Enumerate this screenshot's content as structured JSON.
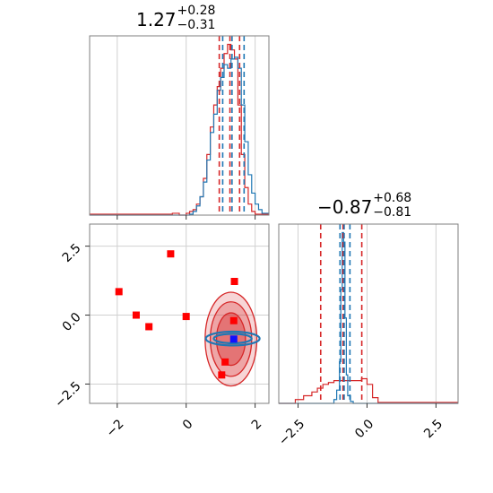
{
  "chart_data": [
    {
      "type": "histogram",
      "panel": "marginal-param-1",
      "title": {
        "main": "1.27",
        "plus": "+0.28",
        "minus": "−0.31"
      },
      "xlim": [
        -2.8,
        2.4
      ],
      "xticks": [
        -2,
        0,
        2
      ],
      "series": [
        {
          "color": "#d62728",
          "bin_edges": [
            -2.8,
            -0.4,
            -0.2,
            0.0,
            0.1,
            0.2,
            0.3,
            0.4,
            0.5,
            0.6,
            0.7,
            0.8,
            0.9,
            1.0,
            1.1,
            1.2,
            1.3,
            1.4,
            1.5,
            1.6,
            1.7,
            1.8,
            1.9,
            2.0,
            2.4
          ],
          "counts": [
            0.005,
            0.01,
            0.0,
            0.01,
            0.02,
            0.03,
            0.06,
            0.1,
            0.2,
            0.33,
            0.48,
            0.6,
            0.7,
            0.8,
            0.88,
            0.93,
            0.9,
            0.85,
            0.6,
            0.33,
            0.15,
            0.06,
            0.02,
            0.005
          ],
          "quantiles": [
            0.96,
            1.27,
            1.55
          ]
        },
        {
          "color": "#1f77b4",
          "bin_edges": [
            -2.8,
            0.1,
            0.2,
            0.3,
            0.4,
            0.5,
            0.6,
            0.7,
            0.8,
            0.9,
            1.0,
            1.1,
            1.2,
            1.3,
            1.4,
            1.5,
            1.6,
            1.7,
            1.8,
            1.9,
            2.0,
            2.1,
            2.2,
            2.4
          ],
          "counts": [
            0.0,
            0.005,
            0.02,
            0.05,
            0.1,
            0.18,
            0.3,
            0.45,
            0.55,
            0.68,
            0.75,
            0.82,
            0.8,
            0.85,
            0.86,
            0.8,
            0.6,
            0.4,
            0.22,
            0.12,
            0.06,
            0.03,
            0.01
          ],
          "quantiles": [
            1.06,
            1.33,
            1.68
          ]
        }
      ]
    },
    {
      "type": "histogram",
      "panel": "marginal-param-2",
      "title": {
        "main": "−0.87",
        "plus": "+0.68",
        "minus": "−0.81"
      },
      "xlim": [
        -3.2,
        3.3
      ],
      "xticks": [
        -2.5,
        0.0,
        2.5
      ],
      "xtick_labels": [
        "−2.5",
        "0.0",
        "2.5"
      ],
      "series": [
        {
          "color": "#d62728",
          "bin_edges": [
            -3.2,
            -2.6,
            -2.3,
            -2.0,
            -1.8,
            -1.6,
            -1.4,
            -1.2,
            -1.0,
            -0.8,
            -0.6,
            -0.4,
            -0.2,
            0.0,
            0.2,
            0.4,
            3.3
          ],
          "counts": [
            0.0,
            0.02,
            0.04,
            0.06,
            0.08,
            0.1,
            0.11,
            0.12,
            0.12,
            0.12,
            0.12,
            0.12,
            0.13,
            0.1,
            0.03,
            0.005
          ],
          "quantiles": [
            -1.68,
            -0.87,
            -0.19
          ]
        },
        {
          "color": "#1f77b4",
          "bin_edges": [
            -3.2,
            -1.2,
            -1.1,
            -1.0,
            -0.95,
            -0.9,
            -0.85,
            -0.8,
            -0.75,
            -0.7,
            -0.6,
            -0.5,
            3.3
          ],
          "counts": [
            0.0,
            0.02,
            0.07,
            0.22,
            0.6,
            0.9,
            0.85,
            0.45,
            0.15,
            0.04,
            0.01,
            0.0
          ],
          "quantiles": [
            -0.98,
            -0.83,
            -0.62
          ]
        }
      ]
    },
    {
      "type": "scatter",
      "panel": "joint",
      "xlim": [
        -2.8,
        2.4
      ],
      "ylim": [
        -3.2,
        3.3
      ],
      "xticks": [
        -2,
        0,
        2
      ],
      "yticks": [
        -2.5,
        0.0,
        2.5
      ],
      "ytick_labels": [
        "−2.5",
        "0.0",
        "2.5"
      ],
      "xtick_labels": [
        "−2",
        "0",
        "2"
      ],
      "markers": {
        "color": "#ff0000",
        "points": [
          [
            -1.95,
            0.85
          ],
          [
            -1.45,
            0.0
          ],
          [
            -1.08,
            -0.42
          ],
          [
            -0.45,
            2.22
          ],
          [
            0.0,
            -0.05
          ],
          [
            1.4,
            1.22
          ],
          [
            1.38,
            -0.2
          ],
          [
            1.13,
            -1.7
          ],
          [
            1.03,
            -2.17
          ]
        ]
      },
      "highlight": {
        "color": "#1010ff",
        "point": [
          1.38,
          -0.87
        ]
      },
      "red_contours": [
        {
          "cx": 1.3,
          "cy": -0.87,
          "rx": 0.75,
          "ry": 1.7,
          "opacity": 0.35
        },
        {
          "cx": 1.3,
          "cy": -0.87,
          "rx": 0.6,
          "ry": 1.35,
          "opacity": 0.5
        },
        {
          "cx": 1.3,
          "cy": -0.87,
          "rx": 0.42,
          "ry": 0.95,
          "opacity": 0.7
        }
      ],
      "blue_contours": [
        {
          "cx": 1.35,
          "cy": -0.85,
          "rx": 0.78,
          "ry": 0.25
        },
        {
          "cx": 1.35,
          "cy": -0.85,
          "rx": 0.55,
          "ry": 0.17
        }
      ],
      "grid": true
    }
  ]
}
